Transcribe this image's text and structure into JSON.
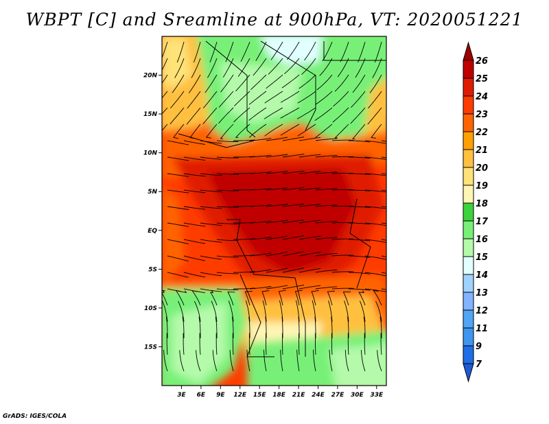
{
  "title": "WBPT [C] and Sreamline at 900hPa, VT: 2020051221",
  "credit": "GrADS: IGES/COLA",
  "map": {
    "lat_labels": [
      "20N",
      "15N",
      "10N",
      "5N",
      "EQ",
      "5S",
      "10S",
      "15S"
    ],
    "lat_values": [
      20,
      15,
      10,
      5,
      0,
      -5,
      -10,
      -15
    ],
    "lon_labels": [
      "3E",
      "6E",
      "9E",
      "12E",
      "15E",
      "18E",
      "21E",
      "24E",
      "27E",
      "30E",
      "33E"
    ],
    "lon_values": [
      3,
      6,
      9,
      12,
      15,
      18,
      21,
      24,
      27,
      30,
      33
    ],
    "lat_range": [
      -20,
      25
    ],
    "lon_range": [
      0,
      34.5
    ]
  },
  "colorbar": {
    "labels": [
      "7",
      "9",
      "11",
      "12",
      "13",
      "14",
      "15",
      "16",
      "17",
      "18",
      "19",
      "20",
      "21",
      "22",
      "23",
      "24",
      "25",
      "26"
    ],
    "colors": [
      "#1e6ee6",
      "#3c96f0",
      "#50a5f5",
      "#82b4ff",
      "#a0d2ff",
      "#e1ffff",
      "#b4faaa",
      "#78f078",
      "#3cd23c",
      "#fff5b4",
      "#ffe278",
      "#ffc040",
      "#ffa000",
      "#ff6400",
      "#ff3c00",
      "#e01c00",
      "#c00000"
    ],
    "low_color": "#1e5ad6",
    "high_color": "#a00000"
  }
}
